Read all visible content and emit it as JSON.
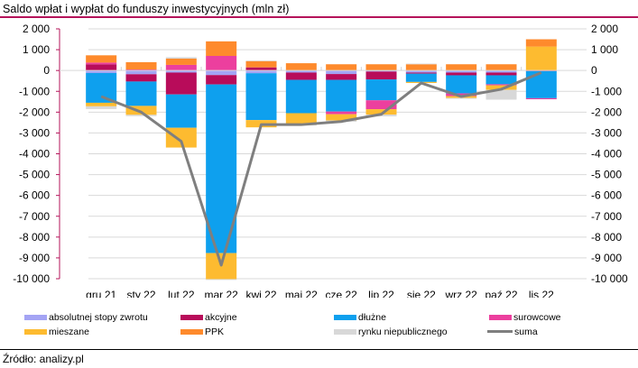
{
  "header": {
    "title": "Saldo wpłat i wypłat do funduszy inwestycyjnych (mln zł)"
  },
  "footer": {
    "source": "Źródło: analizy.pl"
  },
  "chart_data": {
    "type": "bar",
    "stacked": true,
    "title": "Saldo wpłat i wypłat do funduszy inwestycyjnych (mln zł)",
    "xlabel": "",
    "ylabel": "",
    "ylim": [
      -10000,
      2000
    ],
    "y_ticks": [
      2000,
      1000,
      0,
      -1000,
      -2000,
      -3000,
      -4000,
      -5000,
      -6000,
      -7000,
      -8000,
      -9000,
      -10000
    ],
    "y_tick_labels": [
      "2 000",
      "1 000",
      "0",
      "-1 000",
      "-2 000",
      "-3 000",
      "-4 000",
      "-5 000",
      "-6 000",
      "-7 000",
      "-8 000",
      "-9 000",
      "-10 000"
    ],
    "secondary_axis": true,
    "grid": true,
    "legend_position": "bottom",
    "categories": [
      "gru 21",
      "sty 22",
      "lut 22",
      "mar 22",
      "kwi 22",
      "maj 22",
      "cze 22",
      "lip 22",
      "sie 22",
      "wrz 22",
      "paź 22",
      "lis 22"
    ],
    "series": [
      {
        "name": "absolutnej stopy zwrotu",
        "color": "#a4a4f4",
        "type": "bar",
        "values": [
          -120,
          -180,
          -100,
          -220,
          -130,
          -100,
          -170,
          -50,
          -100,
          -100,
          -100,
          -20
        ]
      },
      {
        "name": "akcyjne",
        "color": "#b80c5a",
        "type": "bar",
        "values": [
          300,
          -350,
          -1050,
          -450,
          150,
          -350,
          -280,
          -380,
          -50,
          -130,
          -130,
          -10
        ]
      },
      {
        "name": "dłużne",
        "color": "#0ea0ee",
        "type": "bar",
        "values": [
          -1430,
          -1170,
          -1600,
          -8100,
          -2250,
          -1600,
          -1520,
          -1000,
          -400,
          -870,
          -430,
          -1300
        ]
      },
      {
        "name": "surowcowe",
        "color": "#ec3f9e",
        "type": "bar",
        "values": [
          80,
          50,
          270,
          700,
          0,
          0,
          -130,
          -430,
          0,
          -130,
          -50,
          -50
        ]
      },
      {
        "name": "mieszane",
        "color": "#fdbb30",
        "type": "bar",
        "values": [
          -170,
          -430,
          -950,
          -1250,
          -350,
          -560,
          -300,
          -260,
          -50,
          -90,
          -220,
          1150
        ]
      },
      {
        "name": "PPK",
        "color": "#fe8a2c",
        "type": "bar",
        "values": [
          350,
          350,
          300,
          700,
          300,
          350,
          300,
          300,
          300,
          300,
          300,
          350
        ]
      },
      {
        "name": "rynku niepublicznego",
        "color": "#d8d8d8",
        "type": "bar",
        "values": [
          -130,
          -60,
          70,
          -40,
          30,
          -30,
          -60,
          -80,
          30,
          -40,
          -470,
          0
        ]
      },
      {
        "name": "suma",
        "color": "#7f7f7f",
        "type": "line",
        "values": [
          -1250,
          -2000,
          -3400,
          -9350,
          -2600,
          -2600,
          -2450,
          -2100,
          -600,
          -1250,
          -900,
          -100
        ]
      }
    ],
    "legend": [
      {
        "label": "absolutnej stopy zwrotu",
        "color": "#a4a4f4",
        "kind": "bar"
      },
      {
        "label": "akcyjne",
        "color": "#b80c5a",
        "kind": "bar"
      },
      {
        "label": "dłużne",
        "color": "#0ea0ee",
        "kind": "bar"
      },
      {
        "label": "surowcowe",
        "color": "#ec3f9e",
        "kind": "bar"
      },
      {
        "label": "mieszane",
        "color": "#fdbb30",
        "kind": "bar"
      },
      {
        "label": "PPK",
        "color": "#fe8a2c",
        "kind": "bar"
      },
      {
        "label": "rynku niepublicznego",
        "color": "#d8d8d8",
        "kind": "bar"
      },
      {
        "label": "suma",
        "color": "#7f7f7f",
        "kind": "line"
      }
    ],
    "axis_color": "#b5135a",
    "grid_color": "#d9d9d9"
  }
}
